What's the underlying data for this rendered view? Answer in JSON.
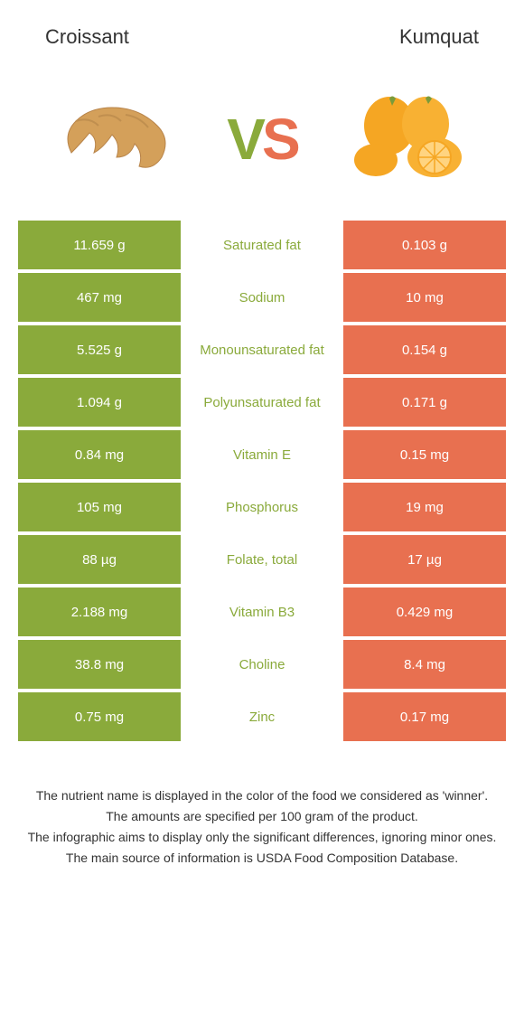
{
  "header": {
    "left": "Croissant",
    "right": "Kumquat"
  },
  "vs": {
    "v": "V",
    "s": "S"
  },
  "colors": {
    "green": "#8aaa3b",
    "orange": "#e87050",
    "text": "#333333",
    "background": "#ffffff"
  },
  "table": {
    "rows": [
      {
        "left": "11.659 g",
        "label": "Saturated fat",
        "right": "0.103 g",
        "winner": "green"
      },
      {
        "left": "467 mg",
        "label": "Sodium",
        "right": "10 mg",
        "winner": "green"
      },
      {
        "left": "5.525 g",
        "label": "Monounsaturated fat",
        "right": "0.154 g",
        "winner": "green"
      },
      {
        "left": "1.094 g",
        "label": "Polyunsaturated fat",
        "right": "0.171 g",
        "winner": "green"
      },
      {
        "left": "0.84 mg",
        "label": "Vitamin E",
        "right": "0.15 mg",
        "winner": "green"
      },
      {
        "left": "105 mg",
        "label": "Phosphorus",
        "right": "19 mg",
        "winner": "green"
      },
      {
        "left": "88 µg",
        "label": "Folate, total",
        "right": "17 µg",
        "winner": "green"
      },
      {
        "left": "2.188 mg",
        "label": "Vitamin B3",
        "right": "0.429 mg",
        "winner": "green"
      },
      {
        "left": "38.8 mg",
        "label": "Choline",
        "right": "8.4 mg",
        "winner": "green"
      },
      {
        "left": "0.75 mg",
        "label": "Zinc",
        "right": "0.17 mg",
        "winner": "green"
      }
    ]
  },
  "footer": {
    "line1": "The nutrient name is displayed in the color of the food we considered as 'winner'.",
    "line2": "The amounts are specified per 100 gram of the product.",
    "line3": "The infographic aims to display only the significant differences, ignoring minor ones.",
    "line4": "The main source of information is USDA Food Composition Database."
  }
}
